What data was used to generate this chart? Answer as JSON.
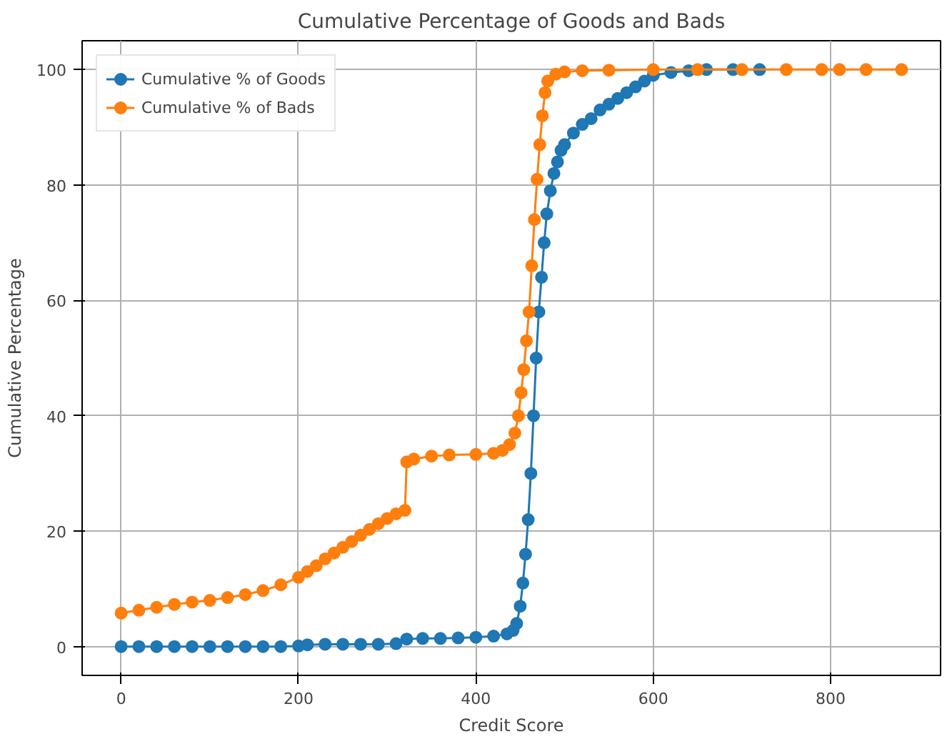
{
  "chart_data": {
    "type": "line",
    "title": "Cumulative Percentage of Goods and Bads",
    "xlabel": "Credit Score",
    "ylabel": "Cumulative Percentage",
    "xlim": [
      -44,
      924
    ],
    "ylim": [
      -5,
      105
    ],
    "xticks": [
      0,
      200,
      400,
      600,
      800
    ],
    "yticks": [
      0,
      20,
      40,
      60,
      80,
      100
    ],
    "grid": true,
    "legend": "top left",
    "marker": "circle",
    "line_style": "solid",
    "series": [
      {
        "name": "Cumulative % of Goods",
        "color": "#1f77b4",
        "x": [
          0,
          20,
          40,
          60,
          80,
          100,
          120,
          140,
          160,
          180,
          200,
          210,
          230,
          250,
          270,
          290,
          310,
          322,
          340,
          360,
          380,
          400,
          420,
          435,
          442,
          446,
          450,
          453,
          456,
          459,
          462,
          465,
          468,
          471,
          474,
          477,
          480,
          484,
          488,
          492,
          496,
          500,
          510,
          520,
          530,
          540,
          550,
          560,
          570,
          580,
          590,
          600,
          620,
          640,
          660,
          690,
          720
        ],
        "values": [
          0,
          0,
          0,
          0,
          0,
          0,
          0,
          0,
          0,
          0,
          0.1,
          0.3,
          0.4,
          0.4,
          0.4,
          0.4,
          0.5,
          1.3,
          1.4,
          1.4,
          1.5,
          1.6,
          1.8,
          2.2,
          2.8,
          4,
          7,
          11,
          16,
          22,
          30,
          40,
          50,
          58,
          64,
          70,
          75,
          79,
          82,
          84,
          86,
          87,
          89,
          90.5,
          91.5,
          93,
          94,
          95,
          96,
          97,
          98,
          99,
          99.5,
          99.8,
          100,
          100,
          100
        ]
      },
      {
        "name": "Cumulative % of Bads",
        "color": "#ff7f0e",
        "x": [
          0,
          20,
          40,
          60,
          80,
          100,
          120,
          140,
          160,
          180,
          200,
          210,
          220,
          230,
          240,
          250,
          260,
          270,
          280,
          290,
          300,
          310,
          320,
          322,
          330,
          350,
          370,
          400,
          420,
          430,
          438,
          444,
          448,
          451,
          454,
          457,
          460,
          463,
          466,
          469,
          472,
          475,
          478,
          481,
          490,
          500,
          520,
          550,
          600,
          650,
          700,
          750,
          790,
          810,
          840,
          880
        ],
        "values": [
          5.8,
          6.3,
          6.8,
          7.3,
          7.7,
          8,
          8.5,
          9,
          9.7,
          10.7,
          12,
          13,
          14,
          15.2,
          16.2,
          17.2,
          18.2,
          19.3,
          20.3,
          21.3,
          22.2,
          23,
          23.6,
          32,
          32.5,
          33,
          33.2,
          33.3,
          33.5,
          34,
          35,
          37,
          40,
          44,
          48,
          53,
          58,
          66,
          74,
          81,
          87,
          92,
          96,
          98,
          99.2,
          99.6,
          99.8,
          99.9,
          100,
          100,
          100,
          100,
          100,
          100,
          100,
          100
        ]
      }
    ]
  }
}
